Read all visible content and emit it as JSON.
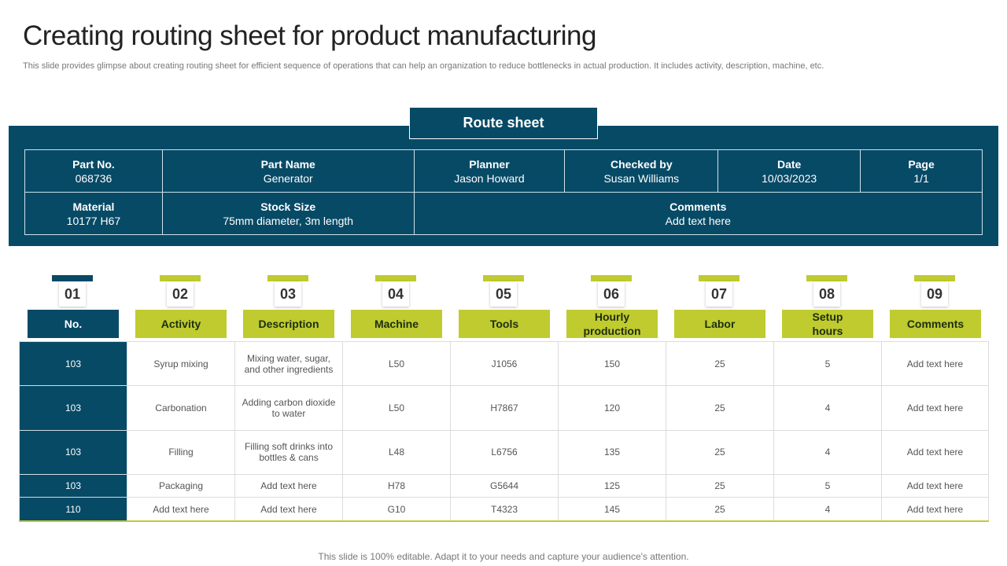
{
  "title": "Creating routing sheet for product manufacturing",
  "subtitle": "This slide provides glimpse about creating routing sheet for efficient sequence of operations that can help an organization to reduce bottlenecks in actual production. It includes activity, description, machine, etc.",
  "route_sheet": {
    "label": "Route sheet",
    "row1": [
      {
        "label": "Part No.",
        "value": "068736"
      },
      {
        "label": "Part Name",
        "value": "Generator"
      },
      {
        "label": "Planner",
        "value": "Jason Howard"
      },
      {
        "label": "Checked by",
        "value": "Susan Williams"
      },
      {
        "label": "Date",
        "value": "10/03/2023"
      },
      {
        "label": "Page",
        "value": "1/1"
      }
    ],
    "row2": [
      {
        "label": "Material",
        "value": "10177 H67"
      },
      {
        "label": "Stock Size",
        "value": "75mm diameter, 3m length"
      },
      {
        "label": "Comments",
        "value": "Add text here"
      }
    ]
  },
  "columns": [
    {
      "num": "01",
      "label": "No."
    },
    {
      "num": "02",
      "label": "Activity"
    },
    {
      "num": "03",
      "label": "Description"
    },
    {
      "num": "04",
      "label": "Machine"
    },
    {
      "num": "05",
      "label": "Tools"
    },
    {
      "num": "06",
      "label": "Hourly production"
    },
    {
      "num": "07",
      "label": "Labor"
    },
    {
      "num": "08",
      "label": "Setup hours"
    },
    {
      "num": "09",
      "label": "Comments"
    }
  ],
  "rows": [
    [
      "103",
      "Syrup mixing",
      "Mixing water, sugar, and other ingredients",
      "L50",
      "J1056",
      "150",
      "25",
      "5",
      "Add text here"
    ],
    [
      "103",
      "Carbonation",
      "Adding carbon dioxide to water",
      "L50",
      "H7867",
      "120",
      "25",
      "4",
      "Add text here"
    ],
    [
      "103",
      "Filling",
      "Filling soft drinks into bottles & cans",
      "L48",
      "L6756",
      "135",
      "25",
      "4",
      "Add text here"
    ],
    [
      "103",
      "Packaging",
      "Add text here",
      "H78",
      "G5644",
      "125",
      "25",
      "5",
      "Add text here"
    ],
    [
      "110",
      "Add text here",
      "Add text here",
      "G10",
      "T4323",
      "145",
      "25",
      "4",
      "Add text here"
    ]
  ],
  "footer": "This slide is 100% editable. Adapt it to your needs and capture your audience's attention.",
  "colors": {
    "primary": "#074a66",
    "accent": "#bfcb2f"
  }
}
